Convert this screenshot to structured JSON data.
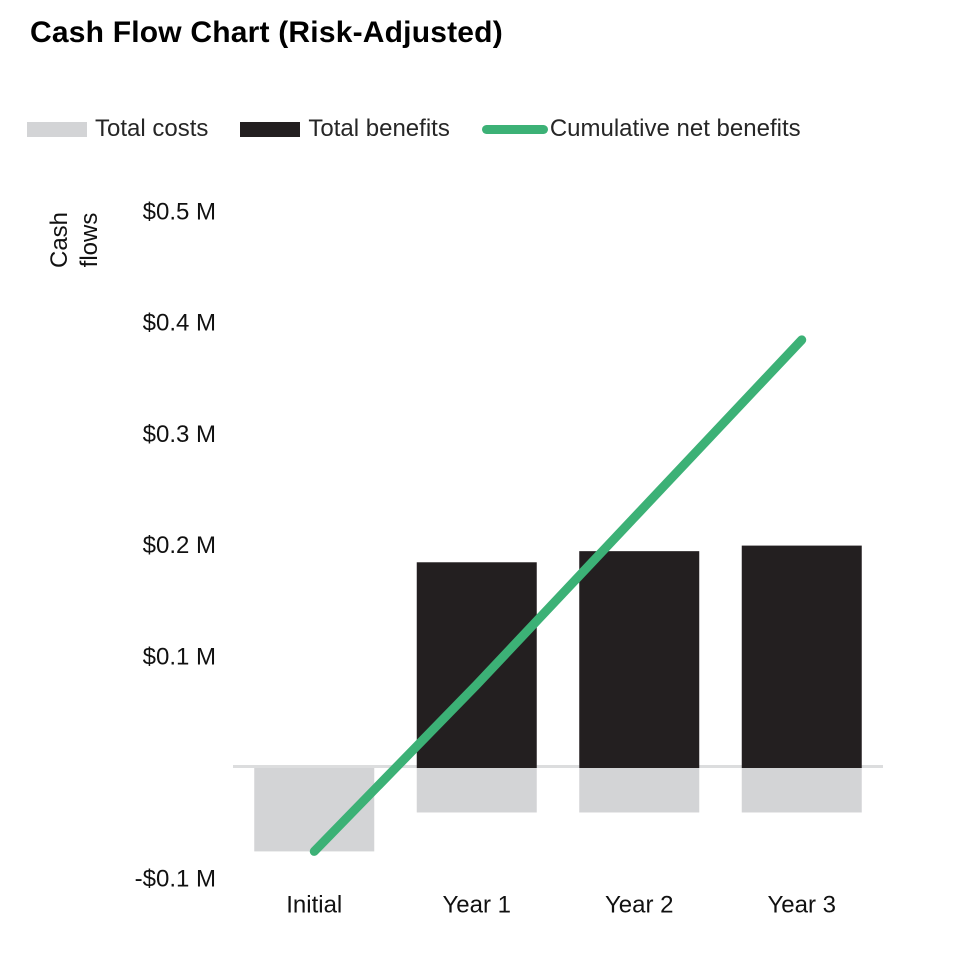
{
  "title": "Cash Flow Chart (Risk-Adjusted)",
  "legend": {
    "items": [
      {
        "label": "Total costs",
        "swatch": "bar",
        "color": "#d3d4d6"
      },
      {
        "label": "Total benefits",
        "swatch": "bar",
        "color": "#231f20"
      },
      {
        "label": "Cumulative net benefits",
        "swatch": "line",
        "color": "#3cb176"
      }
    ],
    "position": "top"
  },
  "y_axis": {
    "title_line1": "Cash",
    "title_line2": "flows",
    "tick_labels": [
      "$0.5 M",
      "$0.4 M",
      "$0.3 M",
      "$0.2 M",
      "$0.1 M",
      "-$0.1 M"
    ]
  },
  "x_axis": {
    "categories": [
      "Initial",
      "Year 1",
      "Year 2",
      "Year 3"
    ]
  },
  "chart_data": {
    "type": "bar",
    "title": "Cash Flow Chart (Risk-Adjusted)",
    "ylabel": "Cash flows",
    "xlabel": "",
    "categories": [
      "Initial",
      "Year 1",
      "Year 2",
      "Year 3"
    ],
    "series": [
      {
        "name": "Total costs",
        "type": "bar",
        "color": "#d3d4d6",
        "values": [
          -0.075,
          -0.04,
          -0.04,
          -0.04
        ]
      },
      {
        "name": "Total benefits",
        "type": "bar",
        "color": "#231f20",
        "values": [
          0,
          0.185,
          0.195,
          0.2
        ]
      },
      {
        "name": "Cumulative net benefits",
        "type": "line",
        "color": "#3cb176",
        "values": [
          -0.075,
          0.075,
          0.23,
          0.385
        ]
      }
    ],
    "y_ticks": [
      {
        "value": 0.5,
        "label": "$0.5 M"
      },
      {
        "value": 0.4,
        "label": "$0.4 M"
      },
      {
        "value": 0.3,
        "label": "$0.3 M"
      },
      {
        "value": 0.2,
        "label": "$0.2 M"
      },
      {
        "value": 0.1,
        "label": "$0.1 M"
      },
      {
        "value": -0.1,
        "label": "-$0.1 M"
      }
    ],
    "unit": "M",
    "ylim": [
      -0.1,
      0.5
    ],
    "grid": false,
    "zero_line": true,
    "zero_line_color": "#dcddde",
    "legend_position": "top"
  }
}
